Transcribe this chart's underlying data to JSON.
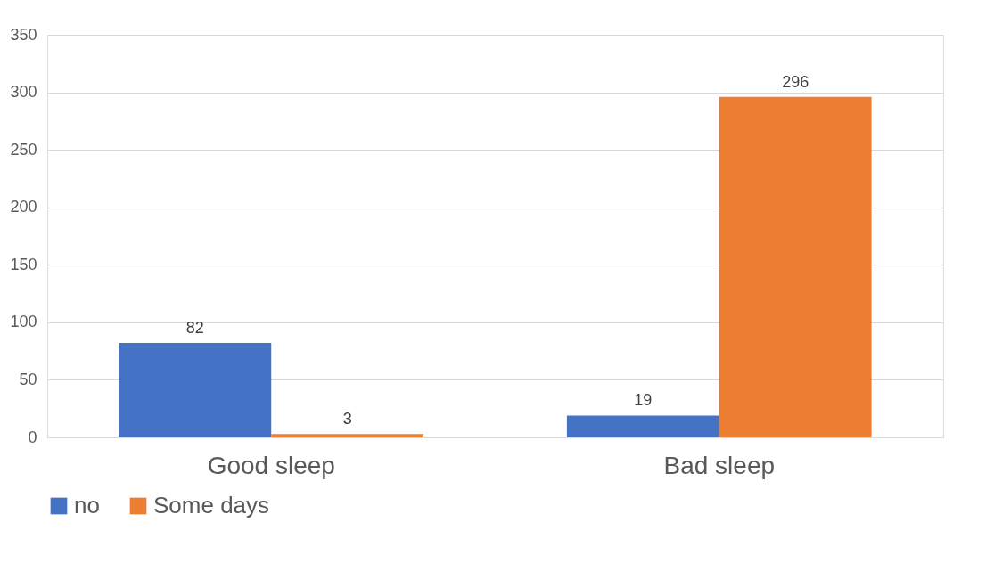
{
  "chart_data": {
    "type": "bar",
    "categories": [
      "Good sleep",
      "Bad sleep"
    ],
    "series": [
      {
        "name": "no",
        "color": "#4472c4",
        "values": [
          82,
          19
        ]
      },
      {
        "name": "Some days",
        "color": "#ed7d31",
        "values": [
          3,
          296
        ]
      }
    ],
    "ylim": [
      0,
      350
    ],
    "yticks": [
      0,
      50,
      100,
      150,
      200,
      250,
      300,
      350
    ],
    "grid": "y",
    "legend": "bottom",
    "data_labels": true
  }
}
